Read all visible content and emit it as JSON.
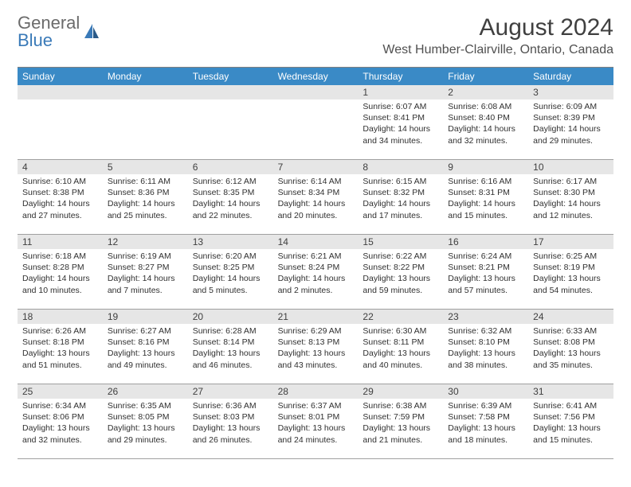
{
  "logo": {
    "text1": "General",
    "text2": "Blue"
  },
  "title": "August 2024",
  "location": "West Humber-Clairville, Ontario, Canada",
  "colors": {
    "header_bg": "#3a8ac6",
    "logo_gray": "#6b6b6b",
    "logo_blue": "#3a7ab8",
    "daynum_bg": "#e6e6e6",
    "border": "#a0a0a0",
    "page_bg": "#ffffff"
  },
  "weekdays": [
    "Sunday",
    "Monday",
    "Tuesday",
    "Wednesday",
    "Thursday",
    "Friday",
    "Saturday"
  ],
  "leading_blanks": 4,
  "days": [
    {
      "n": 1,
      "sunrise": "6:07 AM",
      "sunset": "8:41 PM",
      "daylight": "14 hours and 34 minutes."
    },
    {
      "n": 2,
      "sunrise": "6:08 AM",
      "sunset": "8:40 PM",
      "daylight": "14 hours and 32 minutes."
    },
    {
      "n": 3,
      "sunrise": "6:09 AM",
      "sunset": "8:39 PM",
      "daylight": "14 hours and 29 minutes."
    },
    {
      "n": 4,
      "sunrise": "6:10 AM",
      "sunset": "8:38 PM",
      "daylight": "14 hours and 27 minutes."
    },
    {
      "n": 5,
      "sunrise": "6:11 AM",
      "sunset": "8:36 PM",
      "daylight": "14 hours and 25 minutes."
    },
    {
      "n": 6,
      "sunrise": "6:12 AM",
      "sunset": "8:35 PM",
      "daylight": "14 hours and 22 minutes."
    },
    {
      "n": 7,
      "sunrise": "6:14 AM",
      "sunset": "8:34 PM",
      "daylight": "14 hours and 20 minutes."
    },
    {
      "n": 8,
      "sunrise": "6:15 AM",
      "sunset": "8:32 PM",
      "daylight": "14 hours and 17 minutes."
    },
    {
      "n": 9,
      "sunrise": "6:16 AM",
      "sunset": "8:31 PM",
      "daylight": "14 hours and 15 minutes."
    },
    {
      "n": 10,
      "sunrise": "6:17 AM",
      "sunset": "8:30 PM",
      "daylight": "14 hours and 12 minutes."
    },
    {
      "n": 11,
      "sunrise": "6:18 AM",
      "sunset": "8:28 PM",
      "daylight": "14 hours and 10 minutes."
    },
    {
      "n": 12,
      "sunrise": "6:19 AM",
      "sunset": "8:27 PM",
      "daylight": "14 hours and 7 minutes."
    },
    {
      "n": 13,
      "sunrise": "6:20 AM",
      "sunset": "8:25 PM",
      "daylight": "14 hours and 5 minutes."
    },
    {
      "n": 14,
      "sunrise": "6:21 AM",
      "sunset": "8:24 PM",
      "daylight": "14 hours and 2 minutes."
    },
    {
      "n": 15,
      "sunrise": "6:22 AM",
      "sunset": "8:22 PM",
      "daylight": "13 hours and 59 minutes."
    },
    {
      "n": 16,
      "sunrise": "6:24 AM",
      "sunset": "8:21 PM",
      "daylight": "13 hours and 57 minutes."
    },
    {
      "n": 17,
      "sunrise": "6:25 AM",
      "sunset": "8:19 PM",
      "daylight": "13 hours and 54 minutes."
    },
    {
      "n": 18,
      "sunrise": "6:26 AM",
      "sunset": "8:18 PM",
      "daylight": "13 hours and 51 minutes."
    },
    {
      "n": 19,
      "sunrise": "6:27 AM",
      "sunset": "8:16 PM",
      "daylight": "13 hours and 49 minutes."
    },
    {
      "n": 20,
      "sunrise": "6:28 AM",
      "sunset": "8:14 PM",
      "daylight": "13 hours and 46 minutes."
    },
    {
      "n": 21,
      "sunrise": "6:29 AM",
      "sunset": "8:13 PM",
      "daylight": "13 hours and 43 minutes."
    },
    {
      "n": 22,
      "sunrise": "6:30 AM",
      "sunset": "8:11 PM",
      "daylight": "13 hours and 40 minutes."
    },
    {
      "n": 23,
      "sunrise": "6:32 AM",
      "sunset": "8:10 PM",
      "daylight": "13 hours and 38 minutes."
    },
    {
      "n": 24,
      "sunrise": "6:33 AM",
      "sunset": "8:08 PM",
      "daylight": "13 hours and 35 minutes."
    },
    {
      "n": 25,
      "sunrise": "6:34 AM",
      "sunset": "8:06 PM",
      "daylight": "13 hours and 32 minutes."
    },
    {
      "n": 26,
      "sunrise": "6:35 AM",
      "sunset": "8:05 PM",
      "daylight": "13 hours and 29 minutes."
    },
    {
      "n": 27,
      "sunrise": "6:36 AM",
      "sunset": "8:03 PM",
      "daylight": "13 hours and 26 minutes."
    },
    {
      "n": 28,
      "sunrise": "6:37 AM",
      "sunset": "8:01 PM",
      "daylight": "13 hours and 24 minutes."
    },
    {
      "n": 29,
      "sunrise": "6:38 AM",
      "sunset": "7:59 PM",
      "daylight": "13 hours and 21 minutes."
    },
    {
      "n": 30,
      "sunrise": "6:39 AM",
      "sunset": "7:58 PM",
      "daylight": "13 hours and 18 minutes."
    },
    {
      "n": 31,
      "sunrise": "6:41 AM",
      "sunset": "7:56 PM",
      "daylight": "13 hours and 15 minutes."
    }
  ],
  "labels": {
    "sunrise": "Sunrise:",
    "sunset": "Sunset:",
    "daylight": "Daylight:"
  }
}
